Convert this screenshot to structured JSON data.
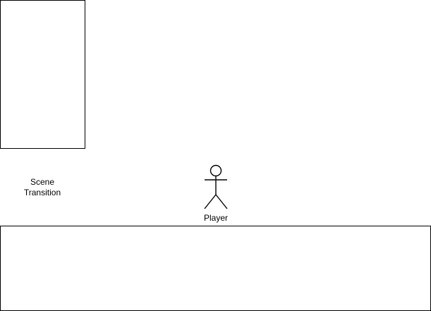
{
  "diagram": {
    "scene_transition_label": {
      "line1": "Scene",
      "line2": "Transition"
    },
    "player_label": "Player",
    "stroke_color": "#000000",
    "fill_color": "#ffffff",
    "actor_icon": "stick-figure-icon"
  }
}
